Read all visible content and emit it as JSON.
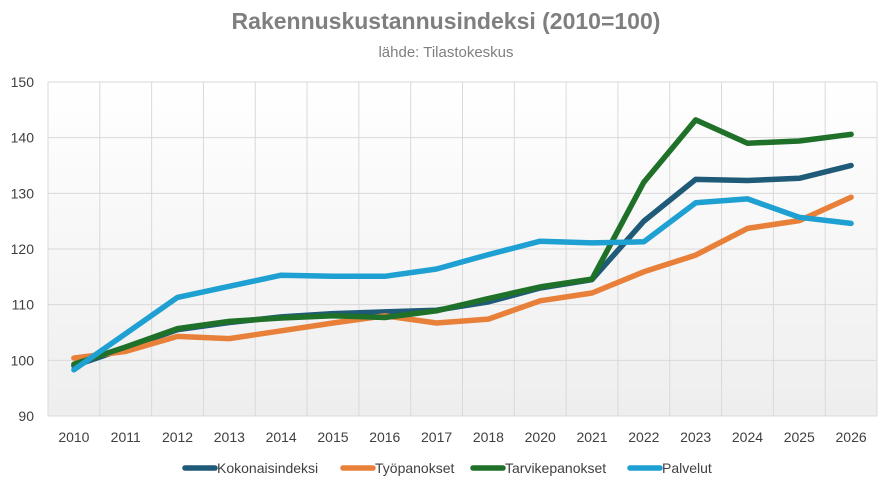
{
  "chart_data": {
    "type": "line",
    "title": "Rakennuskustannusindeksi (2010=100)",
    "subtitle": "lähde: Tilastokeskus",
    "xlabel": "",
    "ylabel": "",
    "categories": [
      "2010",
      "2011",
      "2012",
      "2013",
      "2014",
      "2015",
      "2016",
      "2017",
      "2018",
      "2020",
      "2021",
      "2022",
      "2023",
      "2024",
      "2025",
      "2026"
    ],
    "ylim": [
      90,
      150
    ],
    "yticks": [
      90,
      100,
      110,
      120,
      130,
      140,
      150
    ],
    "grid": true,
    "legend": "bottom",
    "series": [
      {
        "name": "Kokonaisindeksi",
        "color": "#1f5a78",
        "values": [
          99.0,
          102.2,
          105.5,
          106.8,
          107.8,
          108.4,
          108.7,
          109.0,
          110.5,
          113.0,
          114.5,
          125.0,
          132.5,
          132.3,
          132.7,
          135.0
        ]
      },
      {
        "name": "Työpanokset",
        "color": "#e8803a",
        "values": [
          100.4,
          101.6,
          104.3,
          103.9,
          105.3,
          106.7,
          108.0,
          106.7,
          107.4,
          110.7,
          112.1,
          115.9,
          118.9,
          123.7,
          125.1,
          129.3
        ]
      },
      {
        "name": "Tarvikepanokset",
        "color": "#1f7028",
        "values": [
          99.3,
          102.4,
          105.7,
          107.0,
          107.6,
          108.0,
          107.7,
          108.9,
          111.1,
          113.2,
          114.6,
          132.0,
          143.2,
          139.0,
          139.4,
          140.6
        ]
      },
      {
        "name": "Palvelut",
        "color": "#1ea0d2",
        "values": [
          98.3,
          104.8,
          111.3,
          113.3,
          115.3,
          115.1,
          115.1,
          116.4,
          119.0,
          121.4,
          121.1,
          121.3,
          128.3,
          129.0,
          125.7,
          124.6
        ]
      }
    ]
  }
}
